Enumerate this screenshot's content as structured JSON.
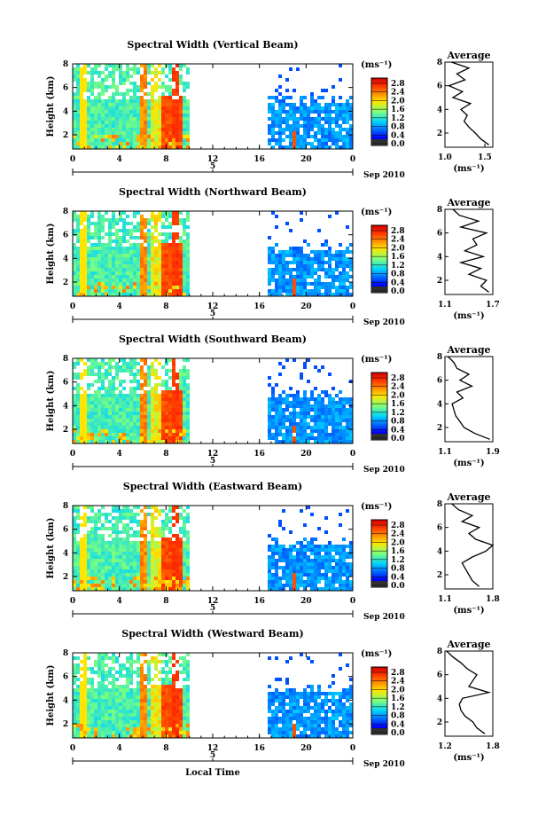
{
  "figure": {
    "xlabel": "Local Time",
    "date_label": "Sep 2010",
    "ylabel": "Height (km)",
    "unit_label": "(ms⁻¹)",
    "average_title": "Average",
    "colorbar_ticks": [
      "0.0",
      "0.4",
      "0.8",
      "1.2",
      "1.6",
      "2.0",
      "2.4",
      "2.8"
    ],
    "x_ticks": [
      "0",
      "4",
      "8",
      "12",
      "16",
      "20",
      "0"
    ],
    "x_date_tick": "5",
    "y_ticks": [
      "8",
      "6",
      "4",
      "2"
    ]
  },
  "chart_data": [
    {
      "type": "heatmap",
      "title": "Spectral Width (Vertical Beam)",
      "xlabel": "Local Time",
      "ylabel": "Height (km)",
      "xlim": [
        0,
        24
      ],
      "ylim": [
        0.8,
        8
      ],
      "colorbar": {
        "label": "(ms⁻¹)",
        "range": [
          0.0,
          2.8
        ]
      },
      "data_gap_hours": [
        9.8,
        16.6
      ],
      "average_profile": {
        "title": "Average",
        "xlabel": "(ms⁻¹)",
        "xlim": [
          1.0,
          1.6
        ],
        "xticks": [
          "1.0",
          "1.5"
        ],
        "height_km": [
          1.0,
          1.5,
          2.0,
          2.5,
          3.0,
          3.5,
          4.0,
          4.5,
          5.0,
          5.5,
          6.0,
          6.5,
          7.0,
          7.5,
          8.0
        ],
        "values": [
          1.55,
          1.45,
          1.38,
          1.3,
          1.24,
          1.28,
          1.2,
          1.32,
          1.1,
          1.22,
          1.05,
          1.25,
          1.15,
          1.3,
          1.08
        ]
      }
    },
    {
      "type": "heatmap",
      "title": "Spectral Width (Northward Beam)",
      "xlabel": "Local Time",
      "ylabel": "Height (km)",
      "xlim": [
        0,
        24
      ],
      "ylim": [
        0.8,
        8
      ],
      "colorbar": {
        "label": "(ms⁻¹)",
        "range": [
          0.0,
          2.8
        ]
      },
      "data_gap_hours": [
        9.8,
        16.6
      ],
      "average_profile": {
        "title": "Average",
        "xlabel": "(ms⁻¹)",
        "xlim": [
          1.1,
          1.7
        ],
        "xticks": [
          "1.1",
          "1.7"
        ],
        "height_km": [
          1.0,
          1.5,
          2.0,
          2.5,
          3.0,
          3.5,
          4.0,
          4.5,
          5.0,
          5.5,
          6.0,
          6.5,
          7.0,
          7.5,
          8.0
        ],
        "values": [
          1.65,
          1.55,
          1.62,
          1.4,
          1.55,
          1.3,
          1.58,
          1.35,
          1.5,
          1.45,
          1.62,
          1.3,
          1.52,
          1.28,
          1.2
        ]
      }
    },
    {
      "type": "heatmap",
      "title": "Spectral Width (Southward Beam)",
      "xlabel": "Local Time",
      "ylabel": "Height (km)",
      "xlim": [
        0,
        24
      ],
      "ylim": [
        0.8,
        8
      ],
      "colorbar": {
        "label": "(ms⁻¹)",
        "range": [
          0.0,
          2.8
        ]
      },
      "data_gap_hours": [
        9.8,
        16.6
      ],
      "average_profile": {
        "title": "Average",
        "xlabel": "(ms⁻¹)",
        "xlim": [
          1.1,
          1.9
        ],
        "xticks": [
          "1.1",
          "1.9"
        ],
        "height_km": [
          1.0,
          1.5,
          2.0,
          2.5,
          3.0,
          3.5,
          4.0,
          4.5,
          5.0,
          5.5,
          6.0,
          6.5,
          7.0,
          7.5,
          8.0
        ],
        "values": [
          1.85,
          1.6,
          1.42,
          1.35,
          1.28,
          1.25,
          1.22,
          1.4,
          1.3,
          1.55,
          1.35,
          1.5,
          1.3,
          1.25,
          1.15
        ]
      }
    },
    {
      "type": "heatmap",
      "title": "Spectral Width (Eastward Beam)",
      "xlabel": "Local Time",
      "ylabel": "Height (km)",
      "xlim": [
        0,
        24
      ],
      "ylim": [
        0.8,
        8
      ],
      "colorbar": {
        "label": "(ms⁻¹)",
        "range": [
          0.0,
          2.8
        ]
      },
      "data_gap_hours": [
        9.8,
        16.6
      ],
      "average_profile": {
        "title": "Average",
        "xlabel": "(ms⁻¹)",
        "xlim": [
          1.1,
          1.8
        ],
        "xticks": [
          "1.1",
          "1.8"
        ],
        "height_km": [
          1.0,
          1.5,
          2.0,
          2.5,
          3.0,
          3.5,
          4.0,
          4.5,
          5.0,
          5.5,
          6.0,
          6.5,
          7.0,
          7.5,
          8.0
        ],
        "values": [
          1.6,
          1.5,
          1.45,
          1.4,
          1.35,
          1.5,
          1.7,
          1.8,
          1.55,
          1.45,
          1.6,
          1.35,
          1.5,
          1.3,
          1.2
        ]
      }
    },
    {
      "type": "heatmap",
      "title": "Spectral Width (Westward Beam)",
      "xlabel": "Local Time",
      "ylabel": "Height (km)",
      "xlim": [
        0,
        24
      ],
      "ylim": [
        0.8,
        8
      ],
      "colorbar": {
        "label": "(ms⁻¹)",
        "range": [
          0.0,
          2.8
        ]
      },
      "data_gap_hours": [
        9.8,
        16.6
      ],
      "average_profile": {
        "title": "Average",
        "xlabel": "(ms⁻¹)",
        "xlim": [
          1.2,
          1.8
        ],
        "xticks": [
          "1.2",
          "1.8"
        ],
        "height_km": [
          1.0,
          1.5,
          2.0,
          2.5,
          3.0,
          3.5,
          4.0,
          4.5,
          5.0,
          5.5,
          6.0,
          6.5,
          7.0,
          7.5,
          8.0
        ],
        "values": [
          1.7,
          1.6,
          1.55,
          1.45,
          1.4,
          1.38,
          1.42,
          1.75,
          1.5,
          1.55,
          1.6,
          1.48,
          1.4,
          1.3,
          1.22
        ]
      }
    }
  ]
}
